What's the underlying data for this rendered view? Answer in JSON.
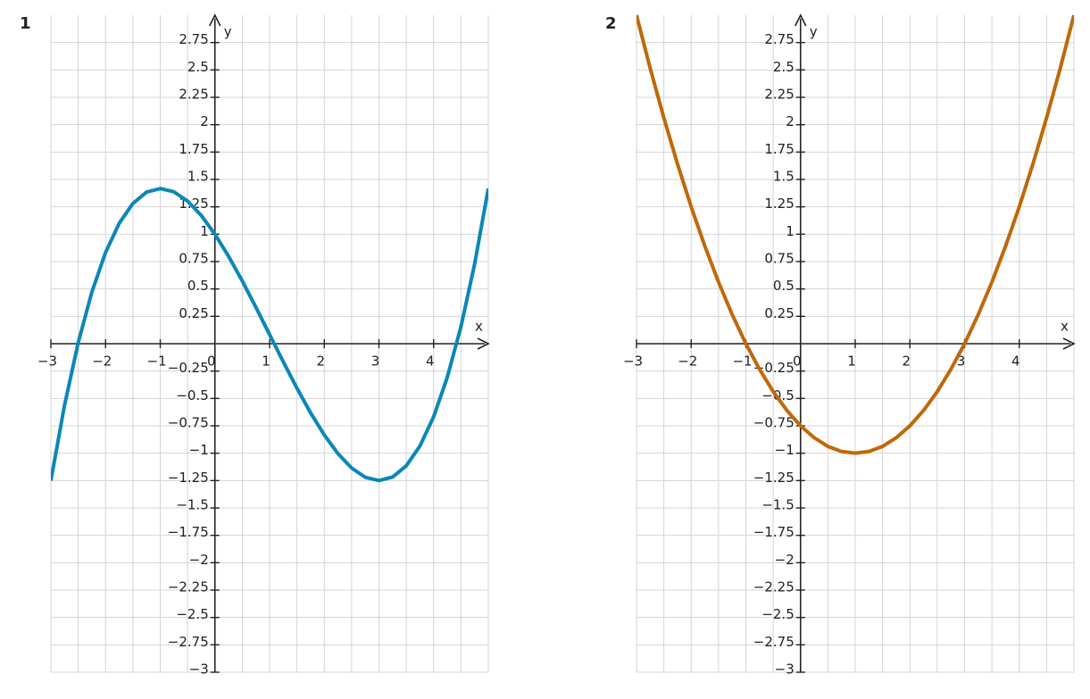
{
  "chart_data": [
    {
      "type": "line",
      "title": "1",
      "x_label": "x",
      "y_label": "y",
      "xlim": [
        -3,
        5
      ],
      "ylim": [
        -3,
        3
      ],
      "grid": true,
      "xgrid": [
        -3,
        -2.5,
        -2,
        -1.5,
        -1,
        -0.5,
        0,
        0.5,
        1,
        1.5,
        2,
        2.5,
        3,
        3.5,
        4,
        4.5,
        5
      ],
      "xticks": [
        {
          "value": -3,
          "label": "−3"
        },
        {
          "value": -2,
          "label": "−2"
        },
        {
          "value": -1,
          "label": "−1"
        },
        0,
        1,
        2,
        3,
        4
      ],
      "yticks": [
        {
          "value": -3,
          "label": "−3"
        },
        {
          "value": -2.75,
          "label": "−2.75"
        },
        {
          "value": -2.5,
          "label": "−2.5"
        },
        {
          "value": -2.25,
          "label": "−2.25"
        },
        {
          "value": -2,
          "label": "−2"
        },
        {
          "value": -1.75,
          "label": "−1.75"
        },
        {
          "value": -1.5,
          "label": "−1.5"
        },
        {
          "value": -1.25,
          "label": "−1.25"
        },
        {
          "value": -1,
          "label": "−1"
        },
        {
          "value": -0.75,
          "label": "−0.75"
        },
        {
          "value": -0.5,
          "label": "−0.5"
        },
        {
          "value": -0.25,
          "label": "−0.25"
        },
        0.25,
        0.5,
        0.75,
        1,
        1.25,
        1.5,
        1.75,
        2,
        2.25,
        2.5,
        2.75
      ],
      "x": [
        -3,
        -2.75,
        -2.5,
        -2.25,
        -2,
        -1.75,
        -1.5,
        -1.25,
        -1,
        -0.75,
        -0.5,
        -0.25,
        0,
        0.25,
        0.5,
        0.75,
        1,
        1.25,
        1.5,
        1.75,
        2,
        2.25,
        2.5,
        2.75,
        3,
        3.25,
        3.5,
        3.75,
        4,
        4.25,
        4.5,
        4.75,
        5
      ],
      "series": [
        {
          "color": "#0a87b8",
          "values": [
            -1.25,
            -0.561,
            0.01,
            0.473,
            0.833,
            1.1,
            1.281,
            1.384,
            1.417,
            1.387,
            1.302,
            1.171,
            1,
            0.798,
            0.573,
            0.332,
            0.083,
            -0.165,
            -0.406,
            -0.632,
            -0.833,
            -1.004,
            -1.135,
            -1.22,
            -1.25,
            -1.217,
            -1.115,
            -0.934,
            -0.667,
            -0.306,
            0.156,
            0.728,
            1.417
          ]
        }
      ]
    },
    {
      "type": "line",
      "title": "2",
      "x_label": "x",
      "y_label": "y",
      "xlim": [
        -3,
        5
      ],
      "ylim": [
        -3,
        3
      ],
      "grid": true,
      "xgrid": [
        -3,
        -2.5,
        -2,
        -1.5,
        -1,
        -0.5,
        0,
        0.5,
        1,
        1.5,
        2,
        2.5,
        3,
        3.5,
        4,
        4.5,
        5
      ],
      "xticks": [
        {
          "value": -3,
          "label": "−3"
        },
        {
          "value": -2,
          "label": "−2"
        },
        {
          "value": -1,
          "label": "−1"
        },
        0,
        1,
        2,
        3,
        4
      ],
      "yticks": [
        {
          "value": -3,
          "label": "−3"
        },
        {
          "value": -2.75,
          "label": "−2.75"
        },
        {
          "value": -2.5,
          "label": "−2.5"
        },
        {
          "value": -2.25,
          "label": "−2.25"
        },
        {
          "value": -2,
          "label": "−2"
        },
        {
          "value": -1.75,
          "label": "−1.75"
        },
        {
          "value": -1.5,
          "label": "−1.5"
        },
        {
          "value": -1.25,
          "label": "−1.25"
        },
        {
          "value": -1,
          "label": "−1"
        },
        {
          "value": -0.75,
          "label": "−0.75"
        },
        {
          "value": -0.5,
          "label": "−0.5"
        },
        {
          "value": -0.25,
          "label": "−0.25"
        },
        0.25,
        0.5,
        0.75,
        1,
        1.25,
        1.5,
        1.75,
        2,
        2.25,
        2.5,
        2.75
      ],
      "x": [
        -3,
        -2.75,
        -2.5,
        -2.25,
        -2,
        -1.75,
        -1.5,
        -1.25,
        -1,
        -0.75,
        -0.5,
        -0.25,
        0,
        0.25,
        0.5,
        0.75,
        1,
        1.25,
        1.5,
        1.75,
        2,
        2.25,
        2.5,
        2.75,
        3,
        3.25,
        3.5,
        3.75,
        4,
        4.25,
        4.5,
        4.75,
        5
      ],
      "series": [
        {
          "color": "#c0680a",
          "values": [
            3,
            2.516,
            2.0625,
            1.641,
            1.25,
            0.891,
            0.5625,
            0.266,
            0,
            -0.234,
            -0.4375,
            -0.609,
            -0.75,
            -0.859,
            -0.938,
            -0.984,
            -1,
            -0.984,
            -0.938,
            -0.859,
            -0.75,
            -0.609,
            -0.4375,
            -0.234,
            0,
            0.266,
            0.5625,
            0.891,
            1.25,
            1.641,
            2.0625,
            2.516,
            3
          ]
        }
      ]
    }
  ]
}
